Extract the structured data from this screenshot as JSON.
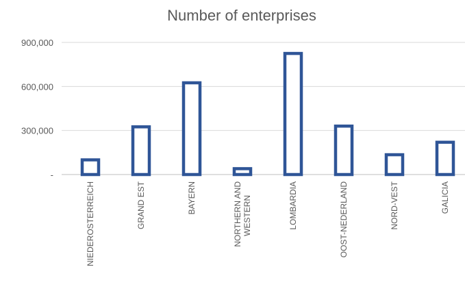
{
  "chart_data": {
    "type": "bar",
    "title": "Number of enterprises",
    "categories": [
      "NIEDEROSTERREICH",
      "GRAND EST",
      "BAYERN",
      "NORTHERN AND WESTERN",
      "LOMBARDIA",
      "OOST-NEDERLAND",
      "NORD-VEST",
      "GALICIA"
    ],
    "values": [
      100000,
      325000,
      625000,
      40000,
      825000,
      330000,
      135000,
      220000
    ],
    "yticks": [
      {
        "value": 0,
        "label": "-"
      },
      {
        "value": 300000,
        "label": "300,000"
      },
      {
        "value": 600000,
        "label": "600,000"
      },
      {
        "value": 900000,
        "label": "900,000"
      }
    ],
    "ylim": [
      0,
      900000
    ],
    "grid": true,
    "bar_style": "outline",
    "bar_edge_color": "#2f5597",
    "bar_fill_color": "#ffffff"
  }
}
